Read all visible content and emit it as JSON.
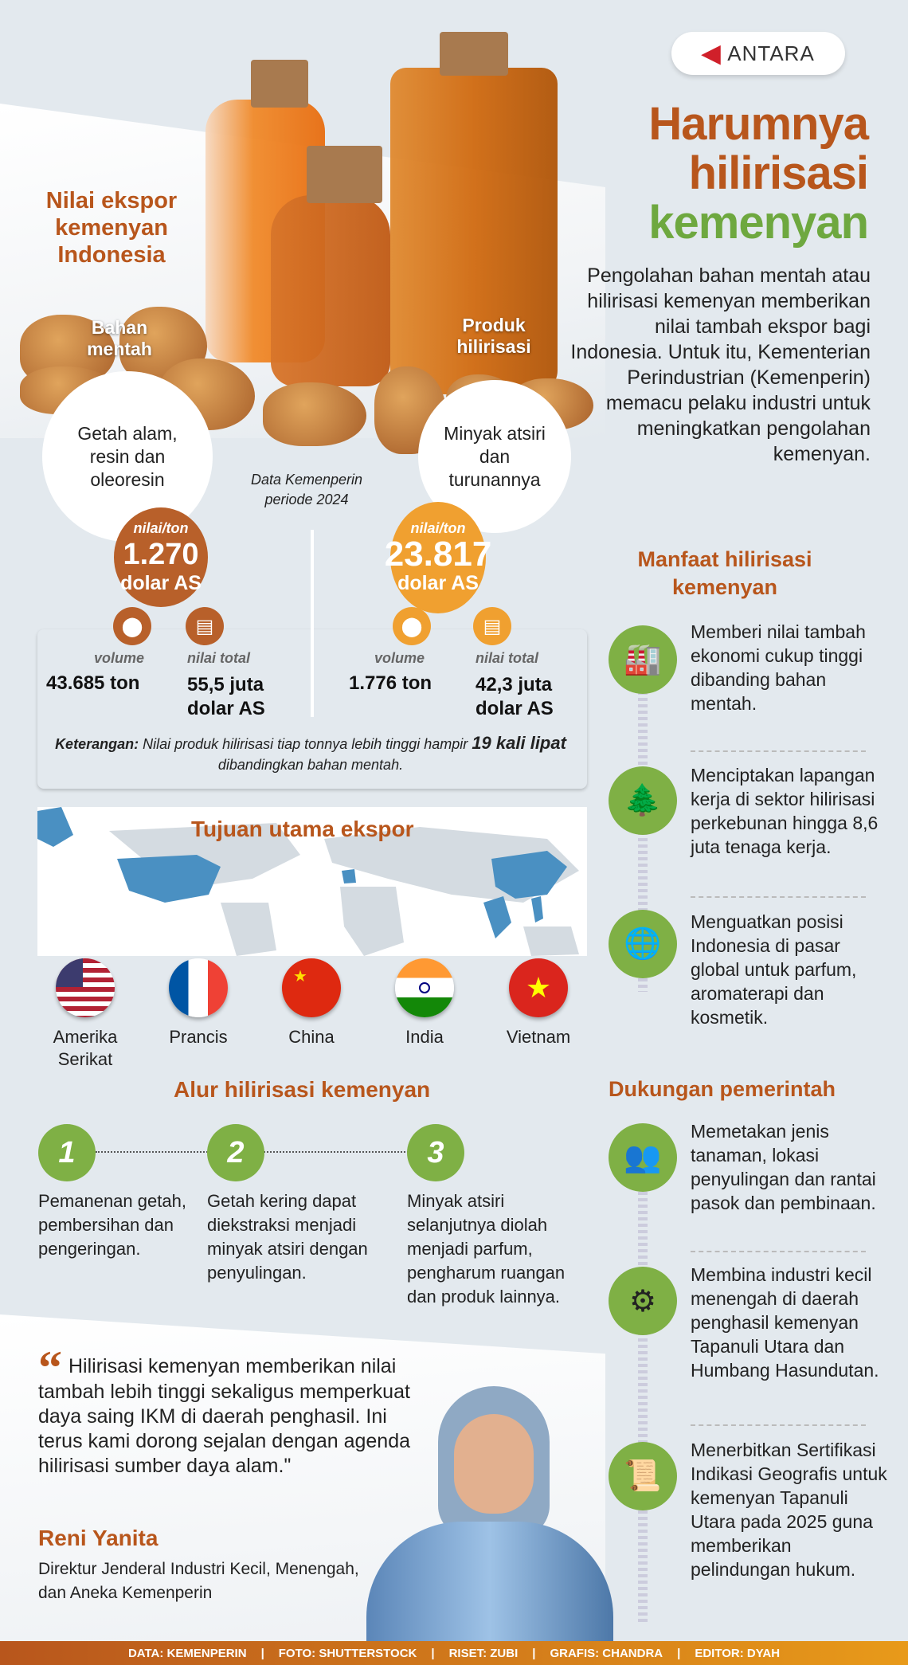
{
  "logo": {
    "text": "ANTARA"
  },
  "title": {
    "line1": "Harumnya",
    "line2": "hilirisasi",
    "line3": "kemenyan"
  },
  "intro": "Pengolahan bahan mentah atau hilirisasi kemenyan memberikan nilai tambah ekspor bagi Indonesia. Untuk itu, Kementerian Perindustrian (Kemenperin) memacu pelaku industri untuk meningkatkan pengolahan kemenyan.",
  "export": {
    "title": "Nilai ekspor kemenyan Indonesia",
    "source": "Data Kemenperin periode 2024",
    "raw": {
      "label": "Bahan mentah",
      "desc": "Getah alam, resin dan oleoresin",
      "per_ton_label": "nilai/ton",
      "per_ton": "1.270",
      "unit": "dolar AS",
      "volume_label": "volume",
      "volume": "43.685 ton",
      "total_label": "nilai total",
      "total": "55,5 juta dolar AS",
      "color": "#b8602a"
    },
    "processed": {
      "label": "Produk hilirisasi",
      "desc": "Minyak atsiri dan turunannya",
      "per_ton_label": "nilai/ton",
      "per_ton": "23.817",
      "unit": "dolar AS",
      "volume_label": "volume",
      "volume": "1.776 ton",
      "total_label": "nilai total",
      "total": "42,3 juta dolar AS",
      "color": "#f0a030"
    },
    "note_bold": "Keterangan:",
    "note_1": " Nilai produk hilirisasi tiap tonnya lebih tinggi hampir ",
    "note_bold2": "19 kali lipat",
    "note_2": " dibandingkan bahan mentah."
  },
  "destinations": {
    "title": "Tujuan utama ekspor",
    "countries": [
      "Amerika Serikat",
      "Prancis",
      "China",
      "India",
      "Vietnam"
    ]
  },
  "flow": {
    "title": "Alur hilirisasi kemenyan",
    "steps": [
      {
        "n": "1",
        "text": "Pemanenan getah, pembersihan dan pengeringan."
      },
      {
        "n": "2",
        "text": "Getah kering dapat diekstraksi menjadi minyak atsiri dengan penyulingan."
      },
      {
        "n": "3",
        "text": "Minyak atsiri selanjutnya diolah menjadi parfum, pengharum ruangan dan produk lainnya."
      }
    ]
  },
  "quote": {
    "text": "Hilirisasi kemenyan memberikan nilai tambah lebih tinggi sekaligus memperkuat daya saing IKM di daerah penghasil. Ini terus kami dorong sejalan dengan agenda hilirisasi sumber daya alam.\"",
    "name": "Reni Yanita",
    "role": "Direktur Jenderal Industri Kecil, Menengah, dan Aneka Kemenperin"
  },
  "benefits": {
    "title": "Manfaat hilirisasi kemenyan",
    "items": [
      "Memberi nilai tambah ekonomi cukup tinggi dibanding bahan mentah.",
      "Menciptakan lapangan kerja di sektor hilirisasi perkebunan hingga 8,6 juta tenaga kerja.",
      "Menguatkan posisi Indonesia di pasar global untuk parfum, aromaterapi dan kosmetik."
    ]
  },
  "support": {
    "title": "Dukungan pemerintah",
    "items": [
      "Memetakan jenis tanaman, lokasi penyulingan dan rantai pasok dan pembinaan.",
      "Membina industri kecil menengah di daerah penghasil kemenyan Tapanuli Utara dan Humbang Hasundutan.",
      "Menerbitkan Sertifikasi Indikasi Geografis untuk kemenyan Tapanuli Utara pada 2025 guna memberikan pelindungan hukum."
    ]
  },
  "footer": [
    "DATA: KEMENPERIN",
    "FOTO: SHUTTERSTOCK",
    "RISET: ZUBI",
    "GRAFIS: CHANDRA",
    "EDITOR: DYAH"
  ],
  "colors": {
    "brown": "#b8561c",
    "green": "#7fb045",
    "orange": "#f0a030"
  }
}
